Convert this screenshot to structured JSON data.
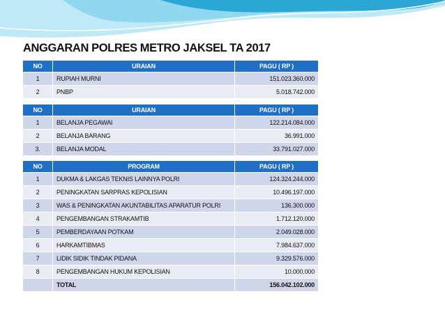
{
  "title": "ANGGARAN POLRES METRO JAKSEL TA 2017",
  "colors": {
    "header_bg": "#1f6fc6",
    "row_odd": "#cfd5ea",
    "row_even": "#e9ebf5",
    "banner_light": "#8fd8f0",
    "banner_dark": "#2ba7d6"
  },
  "funding_table": {
    "headers": {
      "no": "NO",
      "desc": "URAIAN",
      "value": "PAGU ( RP )"
    },
    "rows": [
      {
        "no": "1",
        "desc": "RUPIAH MURNI",
        "value": "151.023.360.000"
      },
      {
        "no": "2",
        "desc": "PNBP",
        "value": "5.018.742.000"
      }
    ]
  },
  "spending_table": {
    "headers": {
      "no": "NO",
      "desc": "URAIAN",
      "value": "PAGU ( RP )"
    },
    "rows": [
      {
        "no": "1",
        "desc": "BELANJA PEGAWAI",
        "value": "122.214.084.000"
      },
      {
        "no": "2",
        "desc": "BELANJA BARANG",
        "value": "36.991.000"
      },
      {
        "no": "3.",
        "desc": "BELANJA MODAL",
        "value": "33.791.027.000"
      }
    ]
  },
  "program_table": {
    "headers": {
      "no": "NO",
      "desc": "PROGRAM",
      "value": "PAGU ( RP )"
    },
    "rows": [
      {
        "no": "1",
        "desc": "DUKMA & LAKGAS TEKNIS LAINNYA POLRI",
        "value": "124.324.244.000"
      },
      {
        "no": "2",
        "desc": "PENINGKATAN SARPRAS KEPOLISIAN",
        "value": "10.496.197.000"
      },
      {
        "no": "3",
        "desc": "WAS & PENINGKATAN AKUNTABILITAS APARATUR POLRI",
        "value": "136.300.000"
      },
      {
        "no": "4",
        "desc": "PENGEMBANGAN STRAKAMTIB",
        "value": "1.712.120.000"
      },
      {
        "no": "5",
        "desc": "PEMBERDAYAAN POTKAM",
        "value": "2.049.028.000"
      },
      {
        "no": "6",
        "desc": "HARKAMTIBMAS",
        "value": "7.984.637.000"
      },
      {
        "no": "7",
        "desc": "LIDIK SIDIK TINDAK PIDANA",
        "value": "9.329.576.000"
      },
      {
        "no": "8",
        "desc": "PENGEMBANGAN HUKUM KEPOLISIAN",
        "value": "10.000.000"
      }
    ],
    "total": {
      "no": "",
      "desc": "TOTAL",
      "value": "156.042.102.000"
    }
  }
}
